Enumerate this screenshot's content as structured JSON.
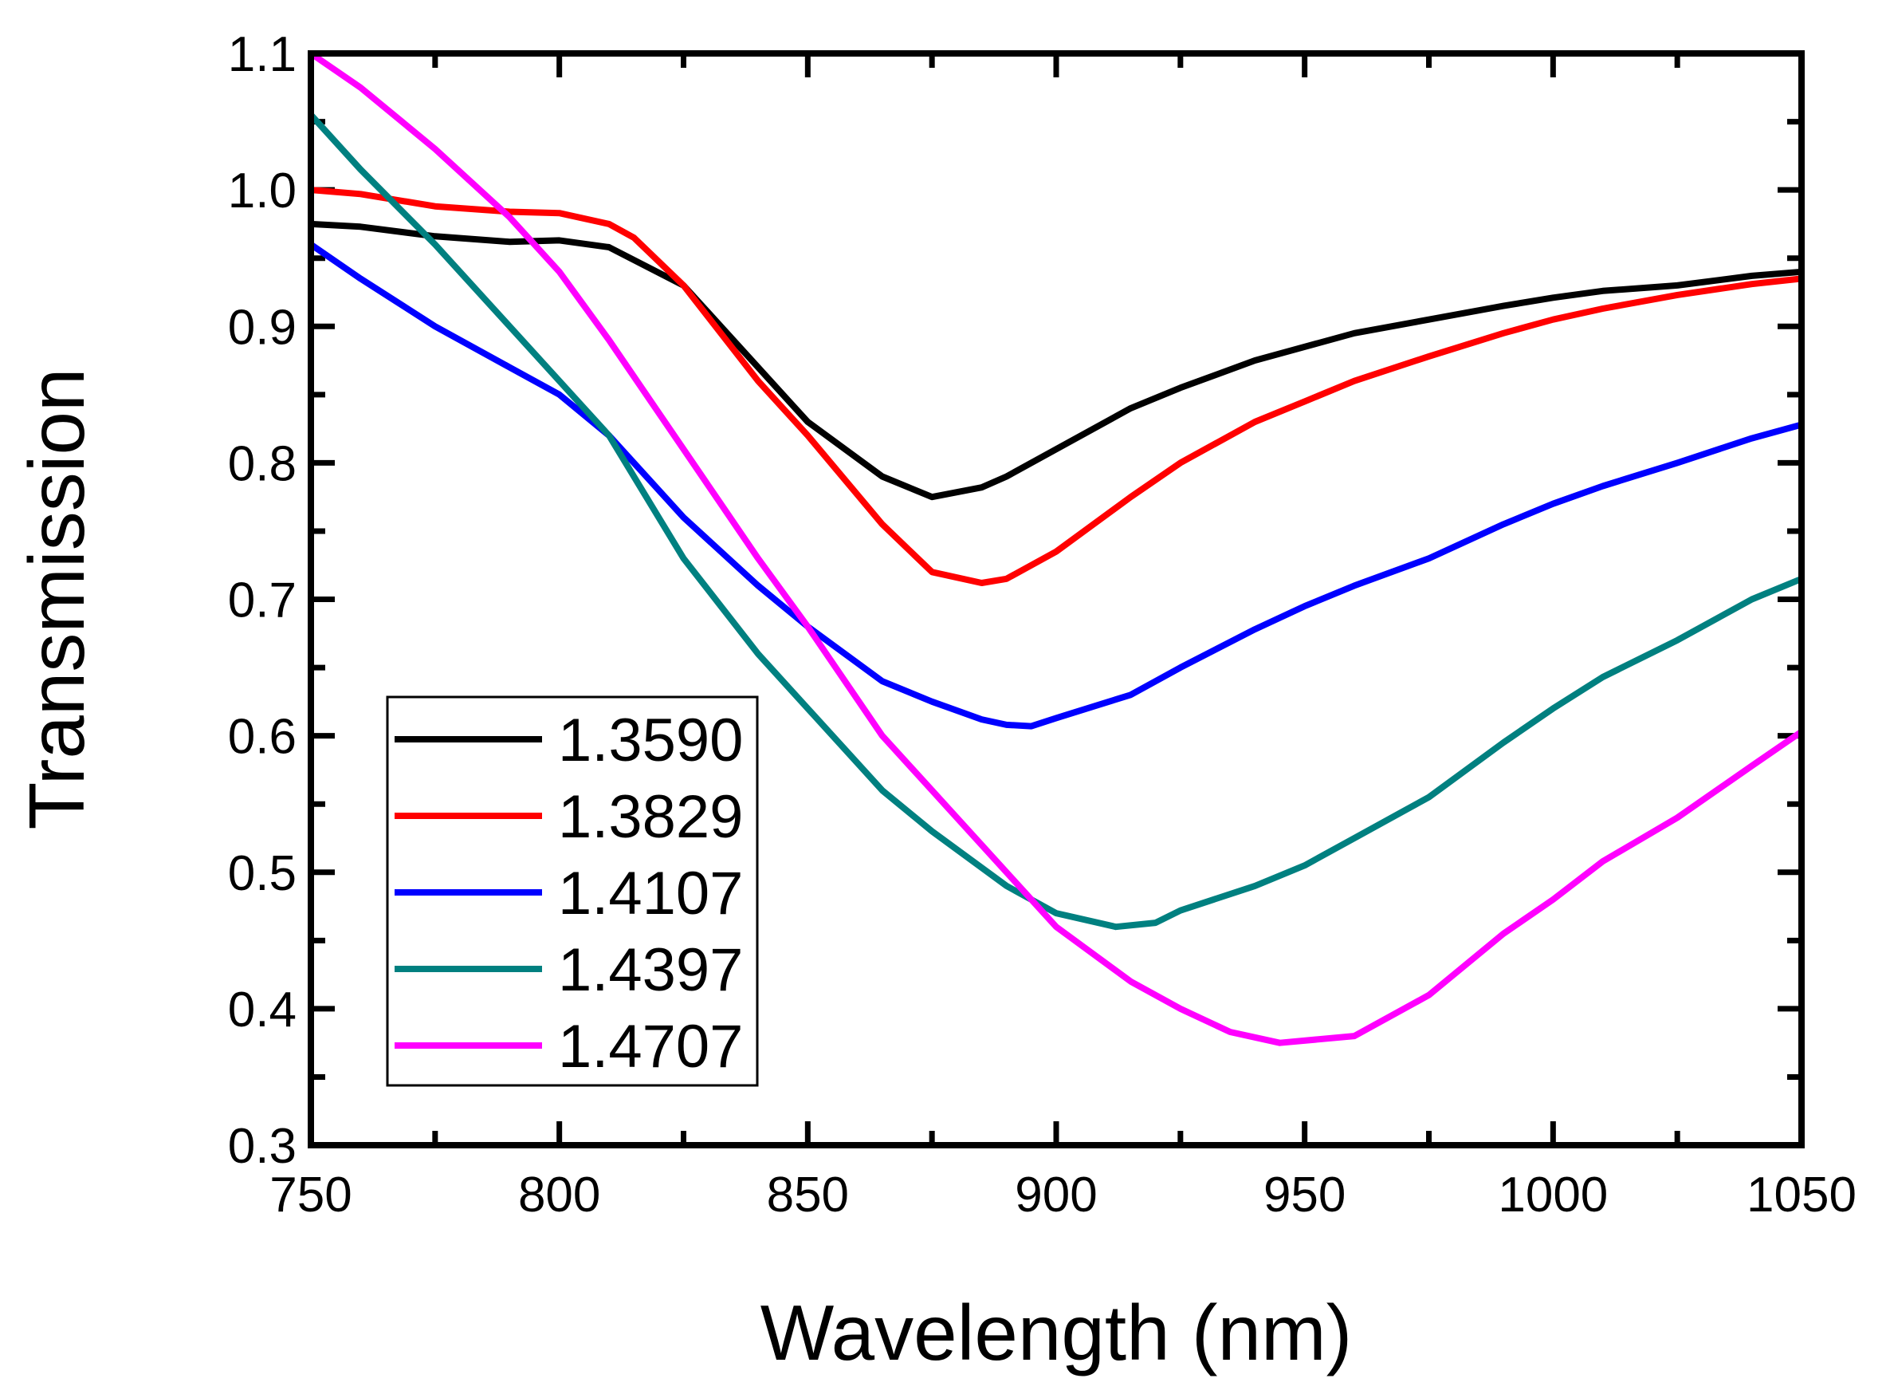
{
  "chart_data": {
    "type": "line",
    "title": "",
    "xlabel": "Wavelength (nm)",
    "ylabel": "Transmission",
    "xlim": [
      750,
      1050
    ],
    "ylim": [
      0.3,
      1.1
    ],
    "xticks": [
      750,
      800,
      850,
      900,
      950,
      1000,
      1050
    ],
    "yticks": [
      0.3,
      0.4,
      0.5,
      0.6,
      0.7,
      0.8,
      0.9,
      1.0,
      1.1
    ],
    "xtick_labels": [
      "750",
      "800",
      "850",
      "900",
      "950",
      "1000",
      "1050"
    ],
    "ytick_labels": [
      "0.3",
      "0.4",
      "0.5",
      "0.6",
      "0.7",
      "0.8",
      "0.9",
      "1.0",
      "1.1"
    ],
    "legend_placement": "lower-left",
    "grid": false,
    "series": [
      {
        "name": "1.3590",
        "color": "#000000",
        "x": [
          750,
          760,
          775,
          790,
          800,
          810,
          825,
          840,
          850,
          865,
          875,
          885,
          890,
          900,
          915,
          925,
          940,
          950,
          960,
          975,
          990,
          1000,
          1010,
          1025,
          1040,
          1050
        ],
        "y": [
          0.975,
          0.973,
          0.966,
          0.962,
          0.963,
          0.958,
          0.93,
          0.87,
          0.83,
          0.79,
          0.775,
          0.782,
          0.79,
          0.81,
          0.84,
          0.855,
          0.875,
          0.885,
          0.895,
          0.905,
          0.915,
          0.921,
          0.926,
          0.93,
          0.937,
          0.94
        ]
      },
      {
        "name": "1.3829",
        "color": "#ff0000",
        "x": [
          750,
          760,
          775,
          790,
          800,
          810,
          815,
          825,
          840,
          850,
          865,
          875,
          885,
          890,
          900,
          915,
          925,
          940,
          950,
          960,
          975,
          990,
          1000,
          1010,
          1025,
          1040,
          1050
        ],
        "y": [
          1.0,
          0.997,
          0.988,
          0.984,
          0.983,
          0.975,
          0.965,
          0.93,
          0.86,
          0.82,
          0.755,
          0.72,
          0.712,
          0.715,
          0.735,
          0.775,
          0.8,
          0.83,
          0.845,
          0.86,
          0.878,
          0.895,
          0.905,
          0.913,
          0.923,
          0.931,
          0.935
        ]
      },
      {
        "name": "1.4107",
        "color": "#0000ff",
        "x": [
          750,
          760,
          775,
          790,
          800,
          810,
          825,
          840,
          850,
          865,
          875,
          885,
          890,
          895,
          900,
          915,
          925,
          940,
          950,
          960,
          975,
          990,
          1000,
          1010,
          1025,
          1040,
          1050
        ],
        "y": [
          0.96,
          0.935,
          0.9,
          0.87,
          0.85,
          0.82,
          0.76,
          0.71,
          0.68,
          0.64,
          0.625,
          0.612,
          0.608,
          0.607,
          0.613,
          0.63,
          0.65,
          0.678,
          0.695,
          0.71,
          0.73,
          0.755,
          0.77,
          0.783,
          0.8,
          0.818,
          0.828
        ]
      },
      {
        "name": "1.4397",
        "color": "#008080",
        "x": [
          750,
          760,
          775,
          790,
          800,
          810,
          825,
          840,
          850,
          865,
          875,
          890,
          900,
          912,
          920,
          925,
          940,
          950,
          960,
          975,
          990,
          1000,
          1010,
          1025,
          1040,
          1050
        ],
        "y": [
          1.055,
          1.015,
          0.96,
          0.9,
          0.86,
          0.82,
          0.73,
          0.66,
          0.62,
          0.56,
          0.53,
          0.49,
          0.47,
          0.46,
          0.463,
          0.472,
          0.49,
          0.505,
          0.525,
          0.555,
          0.595,
          0.62,
          0.643,
          0.67,
          0.7,
          0.715
        ]
      },
      {
        "name": "1.4707",
        "color": "#ff00ff",
        "x": [
          750,
          760,
          775,
          790,
          800,
          810,
          825,
          840,
          850,
          865,
          875,
          890,
          900,
          915,
          925,
          935,
          945,
          960,
          975,
          990,
          1000,
          1010,
          1025,
          1040,
          1050
        ],
        "y": [
          1.1,
          1.075,
          1.03,
          0.98,
          0.94,
          0.89,
          0.81,
          0.73,
          0.68,
          0.6,
          0.56,
          0.5,
          0.46,
          0.42,
          0.4,
          0.383,
          0.375,
          0.38,
          0.41,
          0.455,
          0.48,
          0.508,
          0.54,
          0.578,
          0.603
        ]
      }
    ]
  }
}
